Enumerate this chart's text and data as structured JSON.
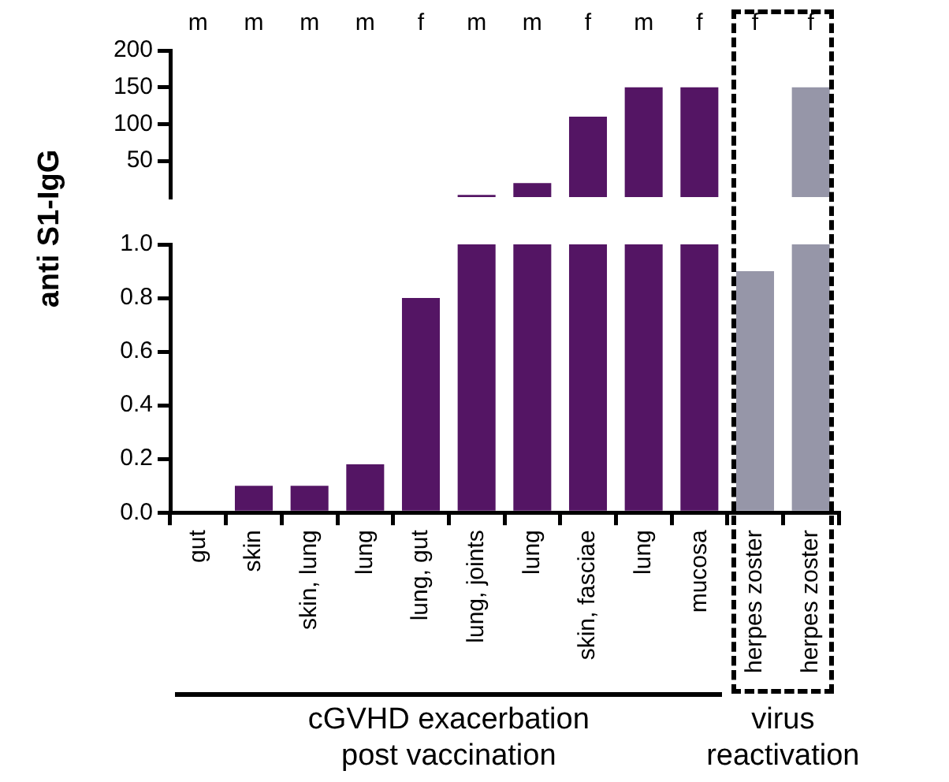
{
  "chart_data": [
    {
      "type": "bar",
      "ylabel": "anti S1-IgG",
      "categories": [
        "m",
        "m",
        "m",
        "m",
        "f",
        "m",
        "m",
        "f",
        "m",
        "f",
        "f",
        "f"
      ],
      "values": [
        null,
        null,
        null,
        null,
        null,
        4,
        20,
        110,
        150,
        150,
        null,
        150
      ],
      "colors": [
        "#541564",
        "#541564",
        "#541564",
        "#541564",
        "#541564",
        "#541564",
        "#541564",
        "#541564",
        "#541564",
        "#541564",
        "#9696a8",
        "#9696a8"
      ],
      "ylim": [
        1,
        200
      ],
      "yticks": [
        50,
        100,
        150,
        200
      ],
      "grid": false,
      "legend": false
    },
    {
      "type": "bar",
      "categories": [
        "gut",
        "skin",
        "skin, lung",
        "lung",
        "lung, gut",
        "lung, joints",
        "lung",
        "skin, fasciae",
        "lung",
        "mucosa",
        "herpes zoster",
        "herpes zoster"
      ],
      "values": [
        0,
        0.1,
        0.1,
        0.18,
        0.8,
        1,
        1,
        1,
        1,
        1,
        0.9,
        1
      ],
      "colors": [
        "#541564",
        "#541564",
        "#541564",
        "#541564",
        "#541564",
        "#541564",
        "#541564",
        "#541564",
        "#541564",
        "#541564",
        "#9696a8",
        "#9696a8"
      ],
      "ylim": [
        0,
        1
      ],
      "yticks": [
        {
          "value": 0,
          "label": "0.0"
        },
        {
          "value": 0.2,
          "label": "0.2"
        },
        {
          "value": 0.4,
          "label": "0.4"
        },
        {
          "value": 0.6,
          "label": "0.6"
        },
        {
          "value": 0.8,
          "label": "0.8"
        },
        {
          "value": 1,
          "label": "1.0"
        }
      ],
      "annotations": [
        "cGVHD exacerbation\npost vaccination",
        "virus\nreactivation"
      ],
      "grid": false,
      "legend": false
    }
  ]
}
